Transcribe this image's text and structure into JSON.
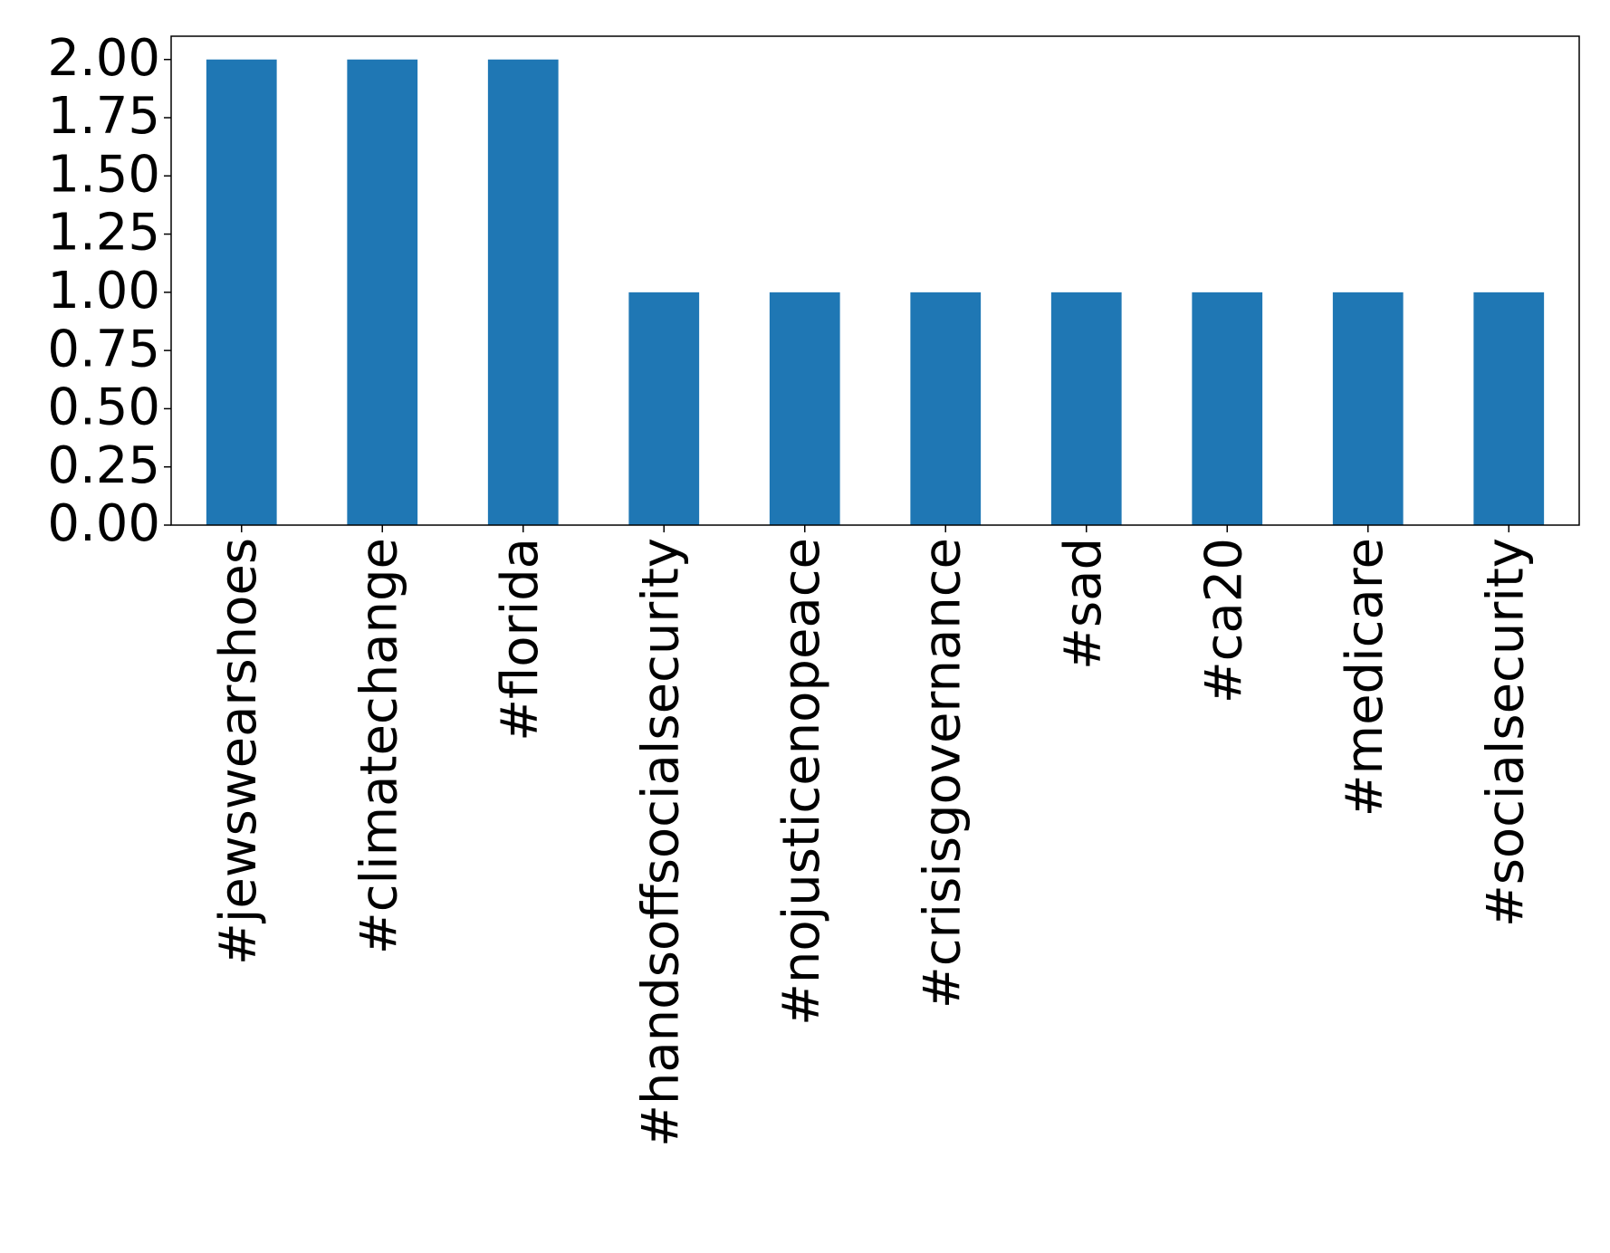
{
  "chart_data": {
    "type": "bar",
    "categories": [
      "#jewswearshoes",
      "#climatechange",
      "#florida",
      "#handsoffsocialsecurity",
      "#nojusticenopeace",
      "#crisisgovernance",
      "#sad",
      "#ca20",
      "#medicare",
      "#socialsecurity"
    ],
    "values": [
      2,
      2,
      2,
      1,
      1,
      1,
      1,
      1,
      1,
      1
    ],
    "color": "#1f77b4",
    "ylim": [
      0,
      2.1
    ],
    "yticks": [
      {
        "value": 0,
        "label": "0.00"
      },
      {
        "value": 0.25,
        "label": "0.25"
      },
      {
        "value": 0.5,
        "label": "0.50"
      },
      {
        "value": 0.75,
        "label": "0.75"
      },
      {
        "value": 1,
        "label": "1.00"
      },
      {
        "value": 1.25,
        "label": "1.25"
      },
      {
        "value": 1.5,
        "label": "1.50"
      },
      {
        "value": 1.75,
        "label": "1.75"
      },
      {
        "value": 2,
        "label": "2.00"
      }
    ],
    "grid": false
  }
}
